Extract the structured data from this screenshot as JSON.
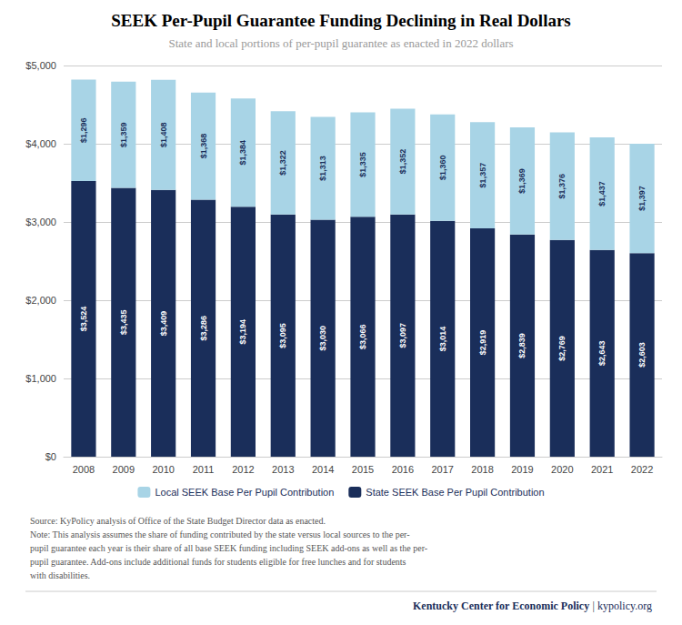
{
  "chart_data": {
    "type": "bar",
    "stacked": true,
    "title": "SEEK Per-Pupil Guarantee Funding Declining in Real Dollars",
    "subtitle": "State and local portions of per-pupil guarantee as enacted in 2022 dollars",
    "categories": [
      "2008",
      "2009",
      "2010",
      "2011",
      "2012",
      "2013",
      "2014",
      "2015",
      "2016",
      "2017",
      "2018",
      "2019",
      "2020",
      "2021",
      "2022"
    ],
    "series": [
      {
        "name": "State SEEK Base Per Pupil Contribution",
        "color": "#1a2e5a",
        "values": [
          3524,
          3435,
          3409,
          3286,
          3194,
          3095,
          3030,
          3066,
          3097,
          3014,
          2919,
          2839,
          2769,
          2643,
          2603
        ],
        "value_labels": [
          "$3,524",
          "$3,435",
          "$3,409",
          "$3,286",
          "$3,194",
          "$3,095",
          "$3,030",
          "$3,066",
          "$3,097",
          "$3,014",
          "$2,919",
          "$2,839",
          "$2,769",
          "$2,643",
          "$2,603"
        ]
      },
      {
        "name": "Local SEEK Base Per Pupil Contribution",
        "color": "#a8d4e6",
        "values": [
          1296,
          1359,
          1408,
          1368,
          1384,
          1322,
          1313,
          1335,
          1352,
          1360,
          1357,
          1369,
          1376,
          1437,
          1397
        ],
        "value_labels": [
          "$1,296",
          "$1,359",
          "$1,408",
          "$1,368",
          "$1,384",
          "$1,322",
          "$1,313",
          "$1,335",
          "$1,352",
          "$1,360",
          "$1,357",
          "$1,369",
          "$1,376",
          "$1,437",
          "$1,397"
        ]
      }
    ],
    "data_labels": true,
    "ylim": [
      0,
      5000
    ],
    "yticks": [
      {
        "value": 0,
        "label": "$0"
      },
      {
        "value": 1000,
        "label": "$1,000"
      },
      {
        "value": 2000,
        "label": "$2,000"
      },
      {
        "value": 3000,
        "label": "$3,000"
      },
      {
        "value": 4000,
        "label": "$4,000"
      },
      {
        "value": 5000,
        "label": "$5,000"
      }
    ],
    "grid": true,
    "legend": "bottom",
    "annotations": [
      "Source: KyPolicy analysis of Office of the State Budget Director data as enacted.\nNote: This analysis assumes the share of funding contributed by the state versus local sources to the per-\npupil guarantee each year is their share of all base SEEK funding including SEEK add-ons as well as the per-\npupil guarantee. Add-ons include additional funds for students eligible for free lunches and for students\nwith disabilities.",
      "Kentucky Center for Economic Policy",
      " | ",
      "kypolicy.org"
    ]
  }
}
